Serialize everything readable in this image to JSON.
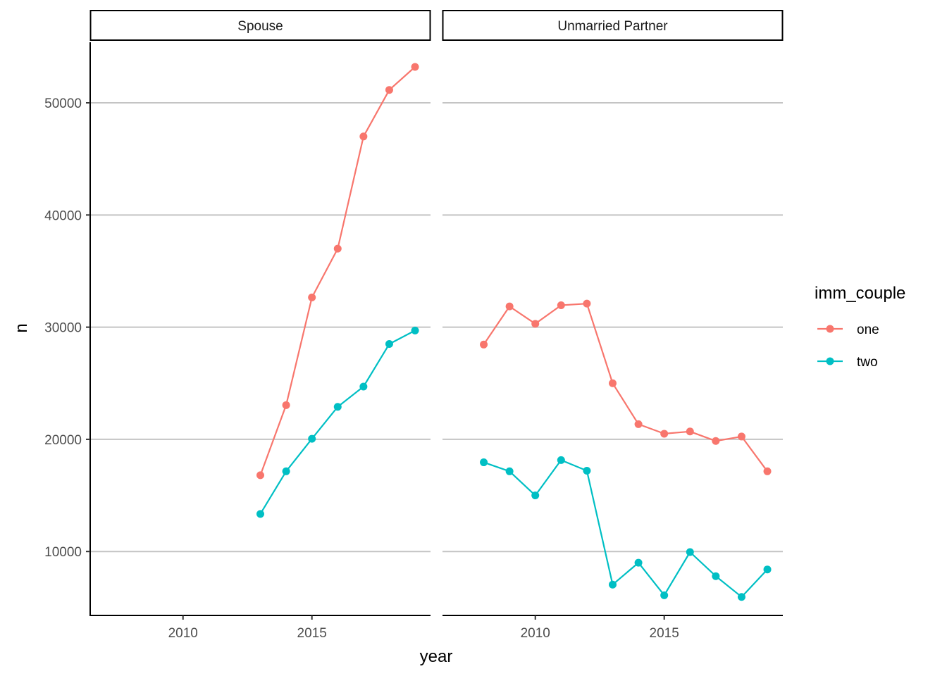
{
  "chart_data": {
    "type": "line",
    "facet_by": "relationship",
    "xlabel": "year",
    "ylabel": "n",
    "xlim": [
      2006.4,
      2019.6
    ],
    "ylim": [
      4300,
      55400
    ],
    "x_ticks": [
      2010,
      2015
    ],
    "y_ticks": [
      10000,
      20000,
      30000,
      40000,
      50000
    ],
    "grid": "horizontal-major",
    "legend": {
      "title": "imm_couple",
      "placement": "right",
      "entries": [
        {
          "label": "one",
          "color": "#F8766D"
        },
        {
          "label": "two",
          "color": "#00BFC4"
        }
      ]
    },
    "panels": [
      {
        "strip": "Spouse",
        "series": [
          {
            "name": "one",
            "color": "#F8766D",
            "x": [
              2013,
              2014,
              2015,
              2016,
              2017,
              2018,
              2019
            ],
            "y": [
              16800,
              23050,
              32650,
              37000,
              47000,
              51150,
              53200
            ]
          },
          {
            "name": "two",
            "color": "#00BFC4",
            "x": [
              2013,
              2014,
              2015,
              2016,
              2017,
              2018,
              2019
            ],
            "y": [
              13350,
              17150,
              20050,
              22900,
              24700,
              28500,
              29700
            ]
          }
        ]
      },
      {
        "strip": "Unmarried Partner",
        "series": [
          {
            "name": "one",
            "color": "#F8766D",
            "x": [
              2008,
              2009,
              2010,
              2011,
              2012,
              2013,
              2014,
              2015,
              2016,
              2017,
              2018,
              2019
            ],
            "y": [
              28450,
              31850,
              30300,
              31950,
              32100,
              25000,
              21350,
              20500,
              20700,
              19850,
              20250,
              17150
            ]
          },
          {
            "name": "two",
            "color": "#00BFC4",
            "x": [
              2008,
              2009,
              2010,
              2011,
              2012,
              2013,
              2014,
              2015,
              2016,
              2017,
              2018,
              2019
            ],
            "y": [
              17950,
              17150,
              15000,
              18150,
              17200,
              7050,
              9000,
              6100,
              9950,
              7800,
              5950,
              8400
            ]
          }
        ]
      }
    ]
  }
}
